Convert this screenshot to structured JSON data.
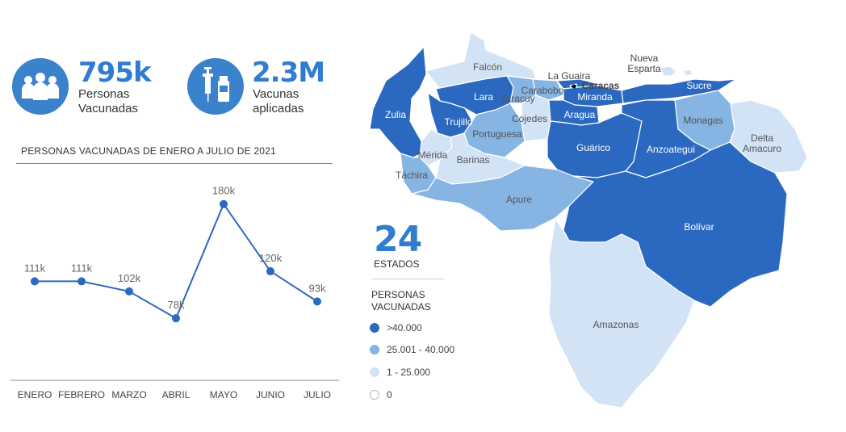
{
  "kpis": [
    {
      "value": "795k",
      "label_line1": "Personas",
      "label_line2": "Vacunadas",
      "icon": "people-group-icon"
    },
    {
      "value": "2.3M",
      "label_line1": "Vacunas",
      "label_line2": "aplicadas",
      "icon": "syringe-vial-icon"
    }
  ],
  "colors": {
    "accent": "#2f7cd0",
    "level_high": "#2b69c0",
    "level_mid": "#86b4e3",
    "level_low": "#d3e3f6",
    "level_zero": "#ffffff",
    "line": "#2b69c0"
  },
  "chart_data": {
    "type": "line",
    "title": "PERSONAS VACUNADAS DE ENERO A JULIO DE 2021",
    "categories": [
      "ENERO",
      "FEBRERO",
      "MARZO",
      "ABRIL",
      "MAYO",
      "JUNIO",
      "JULIO"
    ],
    "values": [
      111000,
      111000,
      102000,
      78000,
      180000,
      120000,
      93000
    ],
    "data_labels": [
      "111k",
      "111k",
      "102k",
      "78k",
      "180k",
      "120k",
      "93k"
    ],
    "xlabel": "",
    "ylabel": "",
    "grid": false
  },
  "summary": {
    "count": "24",
    "count_label": "ESTADOS"
  },
  "legend": {
    "title_line1": "PERSONAS",
    "title_line2": "VACUNADAS",
    "items": [
      {
        "label": ">40.000",
        "level": "high"
      },
      {
        "label": "25.001 - 40.000",
        "level": "mid"
      },
      {
        "label": "1 - 25.000",
        "level": "low"
      },
      {
        "label": "0",
        "level": "zero"
      }
    ]
  },
  "map": {
    "states": [
      {
        "name": "Falcón",
        "level": "low"
      },
      {
        "name": "Zulia",
        "level": "high"
      },
      {
        "name": "Lara",
        "level": "high"
      },
      {
        "name": "Yaracuy",
        "level": "mid"
      },
      {
        "name": "Carabobo",
        "level": "mid"
      },
      {
        "name": "La Guaira",
        "level": "high"
      },
      {
        "name": "Caracas",
        "level": "high"
      },
      {
        "name": "Miranda",
        "level": "high"
      },
      {
        "name": "Nueva Esparta",
        "level": "low"
      },
      {
        "name": "Sucre",
        "level": "high"
      },
      {
        "name": "Trujillo",
        "level": "high"
      },
      {
        "name": "Portuguesa",
        "level": "mid"
      },
      {
        "name": "Cojedes",
        "level": "low"
      },
      {
        "name": "Aragua",
        "level": "high"
      },
      {
        "name": "Monagas",
        "level": "mid"
      },
      {
        "name": "Delta Amacuro",
        "level": "low"
      },
      {
        "name": "Mérida",
        "level": "low"
      },
      {
        "name": "Barinas",
        "level": "low"
      },
      {
        "name": "Guárico",
        "level": "high"
      },
      {
        "name": "Anzoategui",
        "level": "high"
      },
      {
        "name": "Táchira",
        "level": "mid"
      },
      {
        "name": "Apure",
        "level": "mid"
      },
      {
        "name": "Bolívar",
        "level": "high"
      },
      {
        "name": "Amazonas",
        "level": "low"
      }
    ]
  }
}
